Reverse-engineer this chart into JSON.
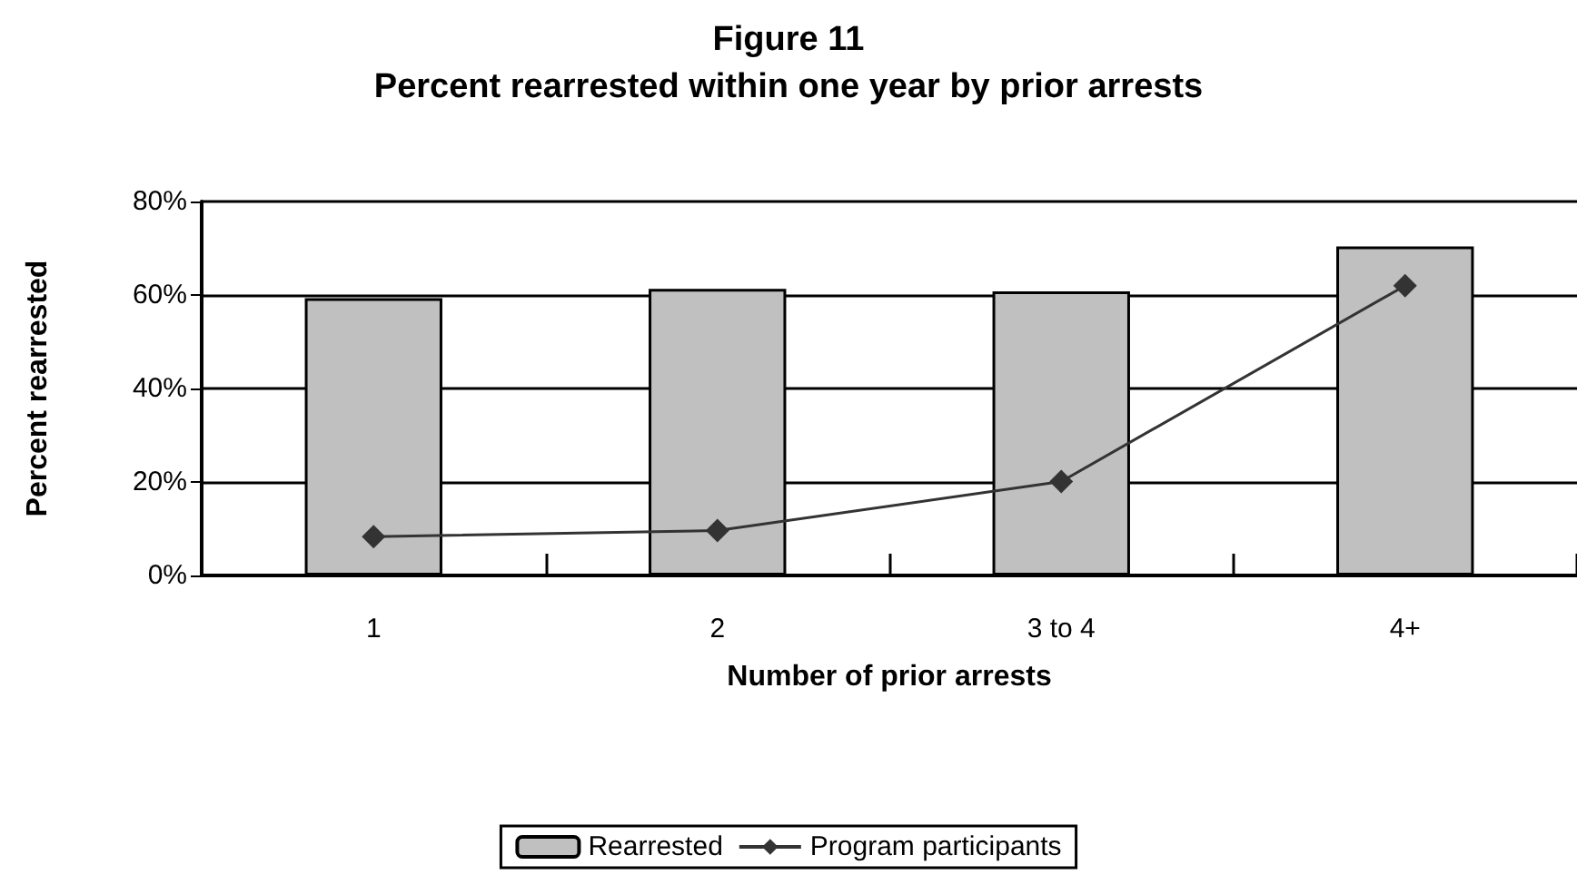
{
  "chart_data": {
    "type": "bar",
    "title": "Figure 11\nPercent rearrested within one year by prior arrests",
    "xlabel": "Number of prior arrests",
    "ylabel": "Percent rearrested",
    "categories": [
      "1",
      "2",
      "3 to 4",
      "4+"
    ],
    "series": [
      {
        "name": "Rearrested",
        "color": "#c0c0c0",
        "values": [
          59.3,
          61.3,
          60.8,
          70.4
        ]
      },
      {
        "name": "Program participants",
        "type": "line",
        "color": "#333333",
        "marker": "diamond",
        "values": [
          8.3,
          9.6,
          20.1,
          62.0
        ]
      }
    ],
    "ylim": [
      0,
      80
    ],
    "yticks": [
      {
        "value": 0,
        "label": "0%"
      },
      {
        "value": 20,
        "label": "20%"
      },
      {
        "value": 40,
        "label": "40%"
      },
      {
        "value": 60,
        "label": "60%"
      },
      {
        "value": 80,
        "label": "80%"
      }
    ],
    "grid": "y",
    "legend": "bottom"
  }
}
